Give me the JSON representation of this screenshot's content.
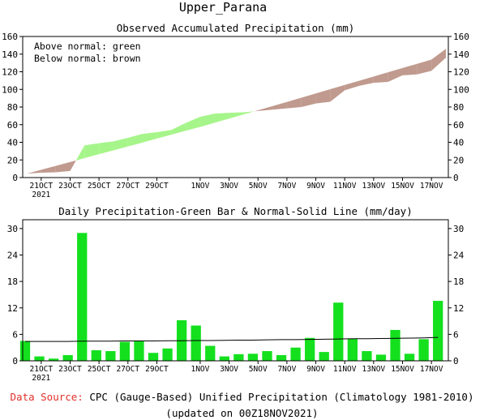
{
  "page": {
    "region_title": "Upper_Parana",
    "footer": {
      "source_label": "Data Source:",
      "source_text": " CPC (Gauge-Based) Unified Precipitation (Climatology 1981-2010)",
      "updated": "(updated on 00Z18NOV2021)"
    }
  },
  "colors": {
    "above_normal": "#a6f58a",
    "below_normal": "#c09a8e",
    "daily_bar": "#14e01e",
    "normal_line": "#000000",
    "source_label": "#e0302a"
  },
  "chart_data": [
    {
      "type": "area",
      "title": "Observed Accumulated Precipitation (mm)",
      "legend_lines": [
        "Above normal: green",
        "Below normal: brown"
      ],
      "legend_position": "top-left",
      "ylim": [
        0,
        160
      ],
      "yticks": [
        0,
        20,
        40,
        60,
        80,
        100,
        120,
        140,
        160
      ],
      "x": [
        "20OCT",
        "21OCT",
        "22OCT",
        "23OCT",
        "24OCT",
        "25OCT",
        "26OCT",
        "27OCT",
        "28OCT",
        "29OCT",
        "30OCT",
        "31OCT",
        "1NOV",
        "2NOV",
        "3NOV",
        "4NOV",
        "5NOV",
        "6NOV",
        "7NOV",
        "8NOV",
        "9NOV",
        "10NOV",
        "11NOV",
        "12NOV",
        "13NOV",
        "14NOV",
        "15NOV",
        "16NOV",
        "17NOV",
        "18NOV"
      ],
      "x_ticks": [
        {
          "index": 1,
          "label": "21OCT",
          "sublabel": "2021"
        },
        {
          "index": 3,
          "label": "23OCT"
        },
        {
          "index": 5,
          "label": "25OCT"
        },
        {
          "index": 7,
          "label": "27OCT"
        },
        {
          "index": 9,
          "label": "29OCT"
        },
        {
          "index": 12,
          "label": "1NOV"
        },
        {
          "index": 14,
          "label": "3NOV"
        },
        {
          "index": 16,
          "label": "5NOV"
        },
        {
          "index": 18,
          "label": "7NOV"
        },
        {
          "index": 20,
          "label": "9NOV"
        },
        {
          "index": 22,
          "label": "11NOV"
        },
        {
          "index": 24,
          "label": "13NOV"
        },
        {
          "index": 26,
          "label": "15NOV"
        },
        {
          "index": 28,
          "label": "17NOV"
        }
      ],
      "series": [
        {
          "name": "Observed",
          "values": [
            4.5,
            5.5,
            6,
            7.5,
            36.5,
            39,
            41,
            45,
            49.5,
            51.5,
            54,
            62,
            69,
            72.5,
            73.5,
            74,
            75.5,
            77,
            78.5,
            80,
            84,
            86,
            99,
            104,
            107.5,
            108.5,
            116,
            117,
            121,
            136
          ]
        },
        {
          "name": "Normal",
          "values": [
            4.4,
            8.8,
            13.2,
            17.6,
            22.1,
            26.5,
            30.9,
            35.3,
            39.7,
            44.2,
            48.6,
            53.1,
            57.5,
            62.2,
            66.9,
            71.6,
            76.3,
            81,
            85.8,
            90.6,
            95.4,
            100.2,
            105,
            109.8,
            114.6,
            119.4,
            124.2,
            129,
            133.8,
            146
          ]
        }
      ]
    },
    {
      "type": "bar",
      "title": "Daily Precipitation-Green Bar & Normal-Solid Line (mm/day)",
      "ylim": [
        0,
        32
      ],
      "yticks": [
        0,
        6,
        12,
        18,
        24,
        30
      ],
      "x": [
        "20OCT",
        "21OCT",
        "22OCT",
        "23OCT",
        "24OCT",
        "25OCT",
        "26OCT",
        "27OCT",
        "28OCT",
        "29OCT",
        "30OCT",
        "31OCT",
        "1NOV",
        "2NOV",
        "3NOV",
        "4NOV",
        "5NOV",
        "6NOV",
        "7NOV",
        "8NOV",
        "9NOV",
        "10NOV",
        "11NOV",
        "12NOV",
        "13NOV",
        "14NOV",
        "15NOV",
        "16NOV",
        "17NOV",
        "18NOV"
      ],
      "series": [
        {
          "name": "Daily",
          "values": [
            4.5,
            1.0,
            0.5,
            1.3,
            29.0,
            2.4,
            2.2,
            4.3,
            4.6,
            1.8,
            2.8,
            9.2,
            8.0,
            3.4,
            1.0,
            1.5,
            1.6,
            2.2,
            1.3,
            3.0,
            5.2,
            2.0,
            13.2,
            5.0,
            2.2,
            1.4,
            7.0,
            1.6,
            4.9,
            13.6
          ]
        },
        {
          "name": "Normal",
          "values": [
            4.4,
            4.4,
            4.4,
            4.4,
            4.45,
            4.45,
            4.45,
            4.5,
            4.5,
            4.5,
            4.55,
            4.55,
            4.6,
            4.6,
            4.65,
            4.7,
            4.7,
            4.75,
            4.8,
            4.8,
            4.85,
            4.9,
            4.95,
            5.0,
            5.0,
            5.05,
            5.1,
            5.15,
            5.2,
            5.3
          ]
        }
      ]
    }
  ]
}
